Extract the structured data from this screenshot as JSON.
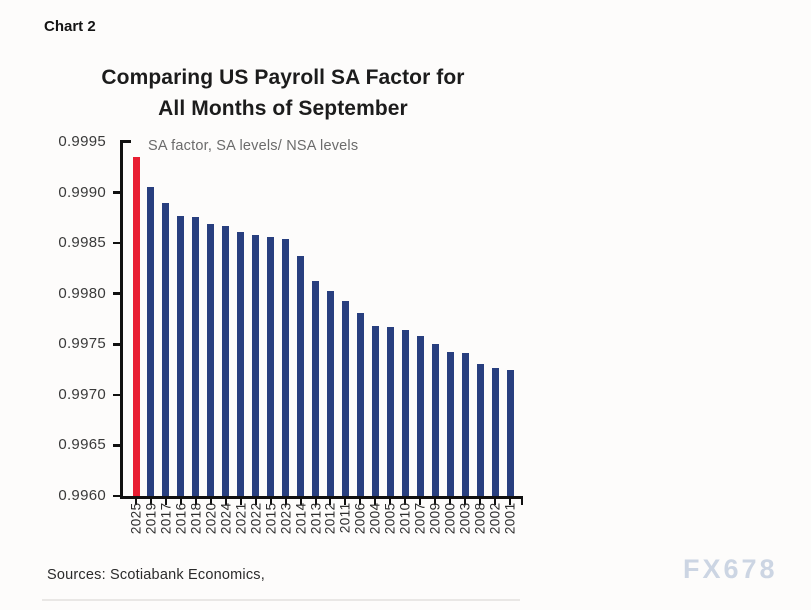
{
  "page": {
    "chart_label": "Chart 2",
    "title_line1": "Comparing US Payroll SA Factor for",
    "title_line2": "All Months of September",
    "subtitle": "SA factor, SA levels/ NSA levels",
    "source": "Sources: Scotiabank Economics,",
    "watermark": "FX678"
  },
  "chart_data": {
    "type": "bar",
    "title": "Comparing US Payroll SA Factor for All Months of September",
    "subtitle": "SA factor, SA levels/ NSA levels",
    "categories": [
      "2025",
      "2019",
      "2017",
      "2016",
      "2018",
      "2020",
      "2024",
      "2021",
      "2022",
      "2015",
      "2023",
      "2014",
      "2013",
      "2012",
      "2011",
      "2006",
      "2004",
      "2005",
      "2010",
      "2007",
      "2009",
      "2000",
      "2003",
      "2008",
      "2002",
      "2001"
    ],
    "values": [
      0.99935,
      0.99906,
      0.9989,
      0.99877,
      0.99876,
      0.99869,
      0.99867,
      0.99861,
      0.99858,
      0.99856,
      0.99854,
      0.99837,
      0.99813,
      0.99803,
      0.99793,
      0.99781,
      0.99768,
      0.99767,
      0.99764,
      0.99758,
      0.9975,
      0.99742,
      0.99741,
      0.99731,
      0.99727,
      0.99725
    ],
    "highlight_category": "2025",
    "bar_color": "#283f7f",
    "highlight_color": "#e81e32",
    "ylim": [
      0.996,
      0.9995
    ],
    "y_tick_labels": [
      "0.9995",
      "0.9990",
      "0.9985",
      "0.9980",
      "0.9975",
      "0.9970",
      "0.9965",
      "0.9960"
    ],
    "y_ticks": [
      0.9995,
      0.999,
      0.9985,
      0.998,
      0.9975,
      0.997,
      0.9965,
      0.996
    ],
    "grid": false,
    "legend": "none",
    "x_labels_rotated": true
  }
}
